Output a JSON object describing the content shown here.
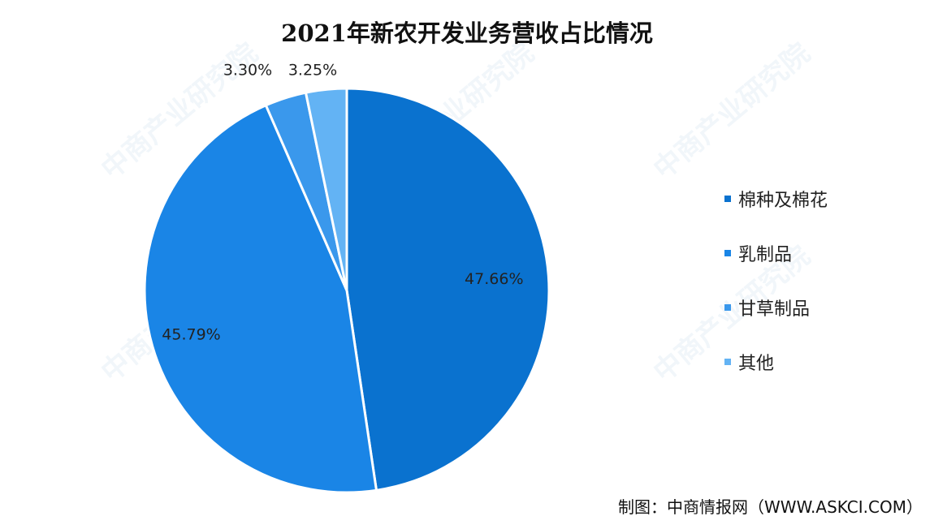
{
  "title": "2021年新农开发业务营收占比情况",
  "source": "制图：中商情报网（WWW.ASKCI.COM）",
  "watermark": "中商产业研究院",
  "chart_data": {
    "type": "pie",
    "title": "2021年新农开发业务营收占比情况",
    "categories": [
      "棉种及棉花",
      "乳制品",
      "甘草制品",
      "其他"
    ],
    "values": [
      47.66,
      45.79,
      3.3,
      3.25
    ],
    "labels": [
      "47.66%",
      "45.79%",
      "3.30%",
      "3.25%"
    ],
    "colors": [
      "#0a72cf",
      "#1a85e6",
      "#3a98ec",
      "#63b3f4"
    ],
    "legend_position": "right"
  }
}
